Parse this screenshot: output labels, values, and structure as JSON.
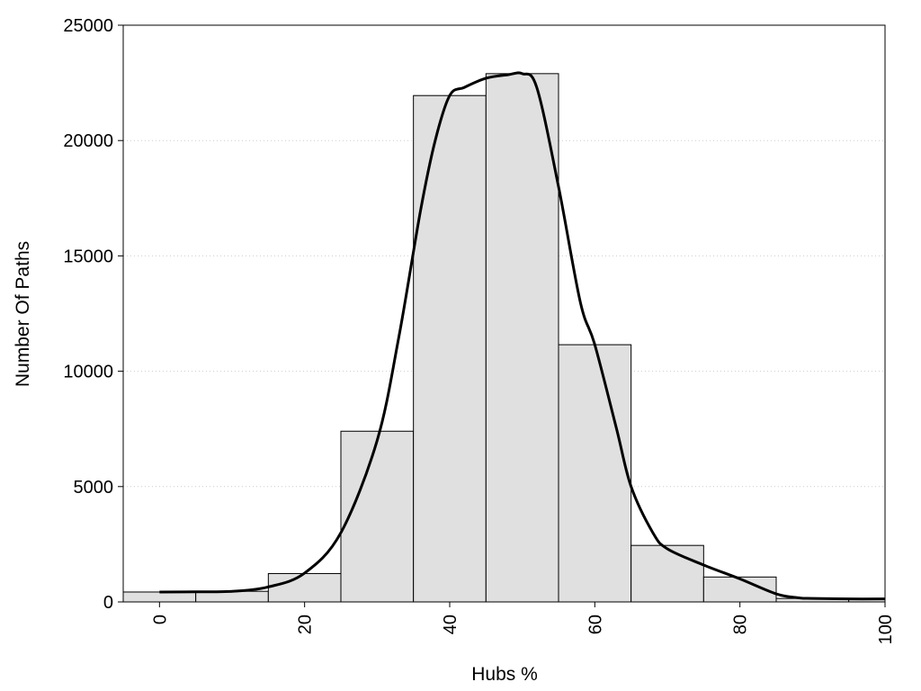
{
  "chart_data": {
    "type": "bar",
    "subtype": "histogram with smooth density curve",
    "title": "",
    "xlabel": "Hubs %",
    "ylabel": "Number Of Paths",
    "xlim": [
      -5,
      100
    ],
    "ylim": [
      0,
      25000
    ],
    "x_ticks": [
      0,
      20,
      40,
      60,
      80,
      100
    ],
    "x_tick_labels": [
      "0",
      "20",
      "40",
      "60",
      "80",
      "100"
    ],
    "y_ticks": [
      0,
      5000,
      10000,
      15000,
      20000,
      25000
    ],
    "y_tick_labels": [
      "0",
      "5000",
      "10000",
      "15000",
      "20000",
      "25000"
    ],
    "grid": {
      "horizontal": true,
      "style": "dotted"
    },
    "bin_width": 10,
    "bins": [
      {
        "center": 0,
        "value": 430
      },
      {
        "center": 10,
        "value": 460
      },
      {
        "center": 20,
        "value": 1230
      },
      {
        "center": 30,
        "value": 7400
      },
      {
        "center": 40,
        "value": 21950
      },
      {
        "center": 50,
        "value": 22900
      },
      {
        "center": 60,
        "value": 11150
      },
      {
        "center": 70,
        "value": 2450
      },
      {
        "center": 80,
        "value": 1080
      },
      {
        "center": 90,
        "value": 150
      },
      {
        "center": 100,
        "value": 130
      }
    ],
    "curve": {
      "x": [
        0,
        5,
        10,
        15,
        20,
        25,
        30,
        33,
        36,
        38,
        40,
        42,
        45,
        48,
        50,
        52,
        55,
        58,
        60,
        63,
        65,
        68,
        70,
        75,
        80,
        85,
        88,
        90,
        95,
        100
      ],
      "y": [
        430,
        440,
        460,
        650,
        1250,
        3000,
        7000,
        11500,
        17000,
        20000,
        21950,
        22300,
        22700,
        22850,
        22900,
        22300,
        18000,
        13000,
        11150,
        7500,
        5000,
        3000,
        2300,
        1600,
        1000,
        350,
        180,
        150,
        130,
        130
      ]
    },
    "colors": {
      "bar_fill": "#e0e0e0",
      "bar_stroke": "#000000",
      "curve": "#000000",
      "grid": "#cccccc"
    }
  }
}
